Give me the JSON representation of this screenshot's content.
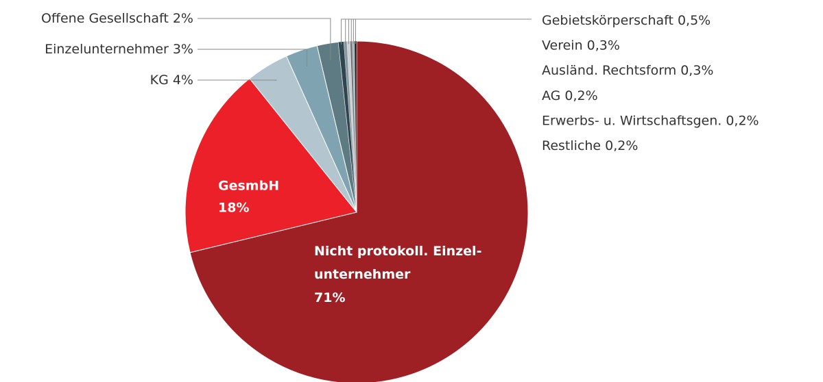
{
  "chart_data": {
    "type": "pie",
    "categories": [
      "Nicht protokoll. Einzel-unternehmer",
      "GesmbH",
      "KG",
      "Einzelunternehmer",
      "Offene Gesellschaft",
      "Gebietskörperschaft",
      "Verein",
      "Ausländ. Rechtsform",
      "AG",
      "Erwerbs- u. Wirtschaftsgen.",
      "Restliche"
    ],
    "values": [
      71,
      18,
      4,
      3,
      2,
      0.5,
      0.3,
      0.3,
      0.2,
      0.2,
      0.2
    ],
    "value_labels": [
      "71%",
      "18%",
      "4%",
      "3%",
      "2%",
      "0,5%",
      "0,3%",
      "0,3%",
      "0,2%",
      "0,2%",
      "0,2%"
    ],
    "colors": [
      "#9e1f24",
      "#ec2028",
      "#b3c6d0",
      "#7fa3b0",
      "#5e7a82",
      "#2f4550",
      "#8a9aa2",
      "#c9d0d3",
      "#6d7377",
      "#aab1b4",
      "#222222"
    ]
  }
}
